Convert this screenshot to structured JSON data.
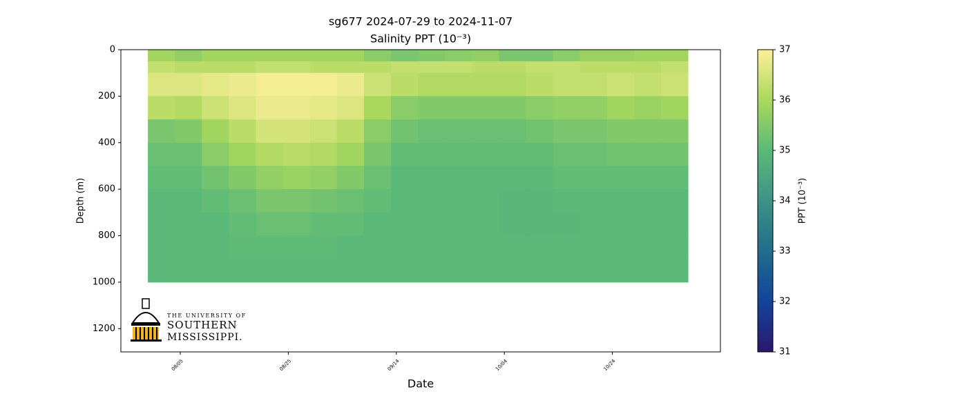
{
  "chart_data": {
    "type": "heatmap",
    "title": "sg677 2024-07-29 to 2024-11-07",
    "subtitle": "Salinity PPT (10⁻³)",
    "xlabel": "Date",
    "ylabel": "Depth (m)",
    "colorbar_label": "PPT (10⁻³)",
    "logo_text": [
      "THE UNIVERSITY OF",
      "SOUTHERN",
      "MISSISSIPPI."
    ],
    "xlim": [
      "07/25",
      "11/13"
    ],
    "xticks": [
      "08/05",
      "08/25",
      "09/14",
      "10/04",
      "10/24"
    ],
    "ylim": [
      1300,
      0
    ],
    "yticks": [
      0,
      200,
      400,
      600,
      800,
      1000,
      1200
    ],
    "clim": [
      31,
      37
    ],
    "cticks": [
      31,
      32,
      33,
      34,
      35,
      36,
      37
    ],
    "colormap": [
      "#2a186c",
      "#14439c",
      "#206e8b",
      "#3c9387",
      "#5ab978",
      "#aad85c",
      "#fdef9a"
    ],
    "x_edges": [
      "07/30",
      "08/04",
      "08/09",
      "08/14",
      "08/19",
      "08/24",
      "08/29",
      "09/03",
      "09/08",
      "09/13",
      "09/18",
      "09/23",
      "09/28",
      "10/03",
      "10/08",
      "10/13",
      "10/18",
      "10/23",
      "10/28",
      "11/02",
      "11/07"
    ],
    "y_edges": [
      0,
      50,
      100,
      200,
      300,
      400,
      500,
      600,
      700,
      800,
      900,
      1000
    ],
    "values": [
      [
        35.9,
        35.7,
        35.9,
        35.9,
        35.9,
        35.9,
        35.9,
        35.9,
        35.6,
        35.4,
        35.5,
        35.6,
        35.7,
        35.4,
        35.4,
        35.6,
        35.8,
        35.8,
        35.9,
        35.9
      ],
      [
        36.3,
        36.2,
        36.2,
        36.2,
        36.3,
        36.3,
        36.2,
        36.2,
        36.2,
        36.3,
        36.3,
        36.3,
        36.2,
        36.2,
        36.3,
        36.3,
        36.2,
        36.2,
        36.2,
        36.3
      ],
      [
        36.6,
        36.6,
        36.7,
        36.8,
        36.9,
        36.9,
        36.9,
        36.8,
        36.4,
        36.2,
        36.1,
        36.1,
        36.1,
        36.1,
        36.2,
        36.3,
        36.3,
        36.4,
        36.3,
        36.4
      ],
      [
        36.2,
        36.1,
        36.4,
        36.6,
        36.8,
        36.8,
        36.7,
        36.6,
        36.0,
        35.6,
        35.5,
        35.5,
        35.5,
        35.5,
        35.6,
        35.7,
        35.7,
        35.9,
        35.8,
        35.9
      ],
      [
        35.4,
        35.5,
        35.9,
        36.2,
        36.5,
        36.5,
        36.4,
        36.2,
        35.6,
        35.3,
        35.2,
        35.2,
        35.2,
        35.2,
        35.3,
        35.4,
        35.4,
        35.5,
        35.5,
        35.5
      ],
      [
        35.2,
        35.2,
        35.6,
        35.9,
        36.1,
        36.2,
        36.1,
        35.9,
        35.4,
        35.1,
        35.1,
        35.1,
        35.1,
        35.1,
        35.1,
        35.2,
        35.2,
        35.3,
        35.3,
        35.3
      ],
      [
        35.1,
        35.1,
        35.3,
        35.5,
        35.7,
        35.8,
        35.7,
        35.5,
        35.2,
        35.0,
        35.0,
        35.0,
        35.0,
        35.0,
        35.0,
        35.1,
        35.1,
        35.1,
        35.1,
        35.1
      ],
      [
        35.0,
        35.0,
        35.1,
        35.2,
        35.4,
        35.4,
        35.3,
        35.2,
        35.1,
        35.0,
        35.0,
        35.0,
        35.0,
        34.95,
        34.95,
        35.0,
        35.0,
        35.0,
        35.0,
        35.0
      ],
      [
        35.0,
        35.0,
        35.0,
        35.1,
        35.2,
        35.2,
        35.1,
        35.1,
        35.0,
        35.0,
        35.0,
        35.0,
        35.0,
        34.95,
        34.95,
        34.95,
        35.0,
        35.0,
        35.0,
        35.0
      ],
      [
        35.0,
        35.0,
        35.0,
        35.05,
        35.05,
        35.05,
        35.05,
        35.0,
        35.0,
        35.0,
        35.0,
        35.0,
        35.0,
        35.0,
        35.0,
        35.0,
        35.0,
        35.0,
        35.0,
        35.0
      ],
      [
        35.0,
        35.0,
        35.0,
        35.0,
        35.0,
        35.0,
        35.0,
        35.0,
        35.0,
        35.0,
        35.0,
        35.0,
        35.0,
        35.0,
        35.0,
        35.0,
        35.0,
        35.0,
        35.0,
        35.0
      ]
    ]
  }
}
